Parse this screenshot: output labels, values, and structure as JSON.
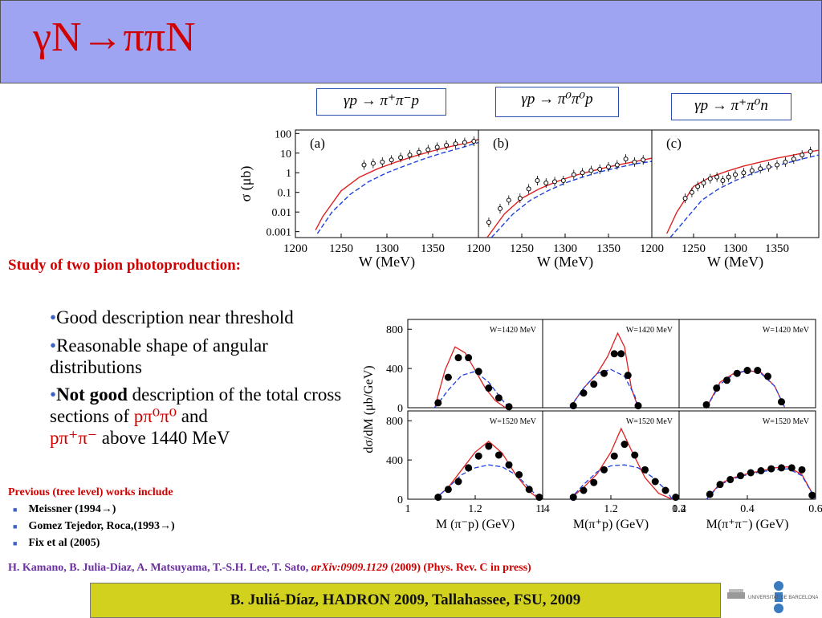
{
  "header": {
    "title": "γN→ππN"
  },
  "reactions": [
    "γp → π⁺π⁻p",
    "γp → π⁰π⁰p",
    "γp → π⁺π⁰n"
  ],
  "study_title": "Study of two pion photoproduction:",
  "bullets": {
    "b1": "Good description near threshold",
    "b2": "Reasonable shape of angular distributions",
    "b3_bold": "Not good",
    "b3_text": " description of the total cross sections of ",
    "b3_r1": "pπ⁰π⁰",
    "b3_and": " and",
    "b3_r2": "pπ⁺π⁻",
    "b3_tail": " above 1440 MeV"
  },
  "previous": {
    "title": "Previous (tree level) works include",
    "items": [
      "Meissner (1994→)",
      "Gomez Tejedor, Roca,(1993→)",
      "Fix et al (2005)"
    ]
  },
  "citation": {
    "authors": "H. Kamano, B. Julia-Diaz, A. Matsuyama, T.-S.H. Lee, T. Sato,",
    "arxiv": "arXiv:0909.1129",
    "journal": "(2009) (Phys. Rev. C in press)"
  },
  "footer": "B. Juliá-Díaz, HADRON 2009, Tallahassee, FSU, 2009",
  "logo_text": "UNIVERSITAT DE BARCELONA",
  "colors": {
    "header_bg": "#9ea3f2",
    "title_red": "#d10000",
    "footer_bg": "#d2d21e",
    "model_full": "#e02020",
    "model_tree": "#2040e0"
  },
  "chart_data": [
    {
      "type": "line",
      "panels": [
        "(a)",
        "(b)",
        "(c)"
      ],
      "xlabel": "W (MeV)",
      "ylabel": "σ (μb)",
      "log_y": true,
      "ylim": [
        0.0005,
        150
      ],
      "yticks": [
        "100",
        "10",
        "1",
        "0.1",
        "0.01",
        "0.001"
      ],
      "xticks": [
        [
          "1200",
          "1250",
          "1300",
          "1350"
        ],
        [
          "1200",
          "1250",
          "1300",
          "1350"
        ],
        [
          "1200",
          "1250",
          "1300",
          "1350"
        ]
      ],
      "xlim": [
        [
          1200,
          1400
        ],
        [
          1200,
          1400
        ],
        [
          1200,
          1400
        ]
      ],
      "series": [
        {
          "panel": 0,
          "kind": "full",
          "x": [
            1222,
            1230,
            1250,
            1270,
            1290,
            1310,
            1330,
            1350,
            1370,
            1390,
            1400
          ],
          "y": [
            0.0012,
            0.006,
            0.12,
            0.6,
            1.6,
            3.5,
            7,
            13,
            22,
            35,
            50
          ]
        },
        {
          "panel": 0,
          "kind": "tree",
          "x": [
            1224,
            1240,
            1260,
            1280,
            1300,
            1320,
            1340,
            1360,
            1380,
            1400
          ],
          "y": [
            0.0008,
            0.01,
            0.08,
            0.35,
            1,
            2.3,
            5,
            10,
            18,
            35
          ]
        },
        {
          "panel": 0,
          "kind": "data",
          "x": [
            1275,
            1285,
            1295,
            1305,
            1315,
            1325,
            1335,
            1345,
            1355,
            1365,
            1375,
            1385,
            1395
          ],
          "y": [
            2.5,
            3,
            3.5,
            4.5,
            6,
            8,
            11,
            15,
            20,
            25,
            30,
            35,
            40
          ]
        },
        {
          "panel": 1,
          "kind": "full",
          "x": [
            1210,
            1230,
            1250,
            1270,
            1290,
            1310,
            1330,
            1350,
            1370,
            1390,
            1400
          ],
          "y": [
            0.0005,
            0.008,
            0.05,
            0.15,
            0.35,
            0.7,
            1.2,
            2,
            3,
            4.5,
            5.5
          ]
        },
        {
          "panel": 1,
          "kind": "tree",
          "x": [
            1215,
            1240,
            1260,
            1280,
            1300,
            1320,
            1340,
            1360,
            1380,
            1400
          ],
          "y": [
            0.0005,
            0.008,
            0.04,
            0.12,
            0.3,
            0.6,
            1.1,
            1.8,
            2.8,
            3.8
          ]
        },
        {
          "panel": 1,
          "kind": "data",
          "x": [
            1212,
            1225,
            1235,
            1248,
            1258,
            1268,
            1278,
            1288,
            1298,
            1310,
            1320,
            1330,
            1340,
            1350,
            1360,
            1370,
            1380,
            1390
          ],
          "y": [
            0.003,
            0.015,
            0.04,
            0.05,
            0.15,
            0.4,
            0.3,
            0.35,
            0.4,
            0.8,
            1,
            1.3,
            1.5,
            2,
            2.5,
            5,
            3.5,
            4.5
          ]
        },
        {
          "panel": 2,
          "kind": "full",
          "x": [
            1218,
            1230,
            1250,
            1270,
            1290,
            1310,
            1330,
            1350,
            1370,
            1390,
            1400
          ],
          "y": [
            0.0008,
            0.01,
            0.2,
            0.6,
            1.2,
            2.2,
            3.5,
            5.5,
            8,
            12,
            14
          ]
        },
        {
          "panel": 2,
          "kind": "tree",
          "x": [
            1222,
            1240,
            1260,
            1280,
            1300,
            1320,
            1340,
            1360,
            1380,
            1400
          ],
          "y": [
            0.0005,
            0.004,
            0.04,
            0.15,
            0.4,
            0.9,
            1.8,
            3,
            5,
            8
          ]
        },
        {
          "panel": 2,
          "kind": "data",
          "x": [
            1240,
            1248,
            1255,
            1262,
            1270,
            1278,
            1285,
            1292,
            1300,
            1310,
            1320,
            1330,
            1340,
            1350,
            1360,
            1370,
            1380,
            1390
          ],
          "y": [
            0.05,
            0.1,
            0.2,
            0.3,
            0.5,
            0.6,
            0.4,
            0.6,
            0.8,
            1,
            1.3,
            1.6,
            2,
            2.5,
            3.5,
            5,
            8,
            12
          ]
        }
      ]
    },
    {
      "type": "line",
      "panels": [
        "W=1420 MeV",
        "W=1420 MeV",
        "W=1420 MeV",
        "W=1520 MeV",
        "W=1520 MeV",
        "W=1520 MeV"
      ],
      "ylabel": "dσ/dM (μb/GeV)",
      "xlabels": [
        "M (π⁻p) (GeV)",
        "M(π⁺p) (GeV)",
        "M(π⁺π⁻) (GeV)"
      ],
      "yticks": [
        "800",
        "400",
        "0"
      ],
      "ylim": [
        0,
        900
      ],
      "xticks": [
        [
          "1",
          "1.2",
          "1.4"
        ],
        [
          "1",
          "1.2",
          "1.4"
        ],
        [
          "0.2",
          "0.4",
          "0.6"
        ]
      ],
      "xlim": [
        [
          1.0,
          1.4
        ],
        [
          1.0,
          1.4
        ],
        [
          0.2,
          0.6
        ]
      ],
      "series": [
        {
          "panel": 0,
          "kind": "full",
          "x": [
            1.08,
            1.11,
            1.14,
            1.17,
            1.2,
            1.23,
            1.26,
            1.29
          ],
          "y": [
            0,
            380,
            620,
            560,
            380,
            200,
            70,
            0
          ]
        },
        {
          "panel": 0,
          "kind": "tree",
          "x": [
            1.08,
            1.12,
            1.16,
            1.2,
            1.24,
            1.28,
            1.3
          ],
          "y": [
            0,
            180,
            330,
            370,
            260,
            80,
            0
          ]
        },
        {
          "panel": 0,
          "kind": "data",
          "x": [
            1.09,
            1.12,
            1.15,
            1.18,
            1.21,
            1.24,
            1.27,
            1.3
          ],
          "y": [
            50,
            310,
            510,
            510,
            370,
            200,
            100,
            10
          ]
        },
        {
          "panel": 1,
          "kind": "full",
          "x": [
            1.08,
            1.12,
            1.16,
            1.19,
            1.22,
            1.24,
            1.26,
            1.28
          ],
          "y": [
            0,
            200,
            350,
            520,
            760,
            620,
            200,
            0
          ]
        },
        {
          "panel": 1,
          "kind": "tree",
          "x": [
            1.08,
            1.12,
            1.16,
            1.2,
            1.24,
            1.27,
            1.28
          ],
          "y": [
            0,
            200,
            350,
            390,
            320,
            120,
            0
          ]
        },
        {
          "panel": 1,
          "kind": "data",
          "x": [
            1.09,
            1.12,
            1.15,
            1.18,
            1.21,
            1.23,
            1.25,
            1.28
          ],
          "y": [
            20,
            150,
            240,
            350,
            550,
            550,
            330,
            20
          ]
        },
        {
          "panel": 2,
          "kind": "full",
          "x": [
            0.28,
            0.32,
            0.36,
            0.4,
            0.44,
            0.48,
            0.51
          ],
          "y": [
            0,
            260,
            350,
            380,
            360,
            220,
            0
          ]
        },
        {
          "panel": 2,
          "kind": "tree",
          "x": [
            0.28,
            0.32,
            0.36,
            0.4,
            0.44,
            0.48,
            0.51
          ],
          "y": [
            0,
            240,
            340,
            380,
            350,
            220,
            0
          ]
        },
        {
          "panel": 2,
          "kind": "data",
          "x": [
            0.28,
            0.31,
            0.34,
            0.37,
            0.4,
            0.43,
            0.46,
            0.5
          ],
          "y": [
            30,
            200,
            280,
            350,
            380,
            380,
            320,
            60
          ]
        },
        {
          "panel": 3,
          "kind": "full",
          "x": [
            1.08,
            1.12,
            1.16,
            1.2,
            1.24,
            1.28,
            1.32,
            1.36,
            1.39
          ],
          "y": [
            0,
            120,
            300,
            480,
            590,
            470,
            250,
            80,
            0
          ]
        },
        {
          "panel": 3,
          "kind": "tree",
          "x": [
            1.08,
            1.12,
            1.16,
            1.2,
            1.24,
            1.28,
            1.32,
            1.36,
            1.39
          ],
          "y": [
            0,
            120,
            250,
            320,
            350,
            330,
            250,
            120,
            0
          ]
        },
        {
          "panel": 3,
          "kind": "data",
          "x": [
            1.09,
            1.12,
            1.15,
            1.18,
            1.21,
            1.24,
            1.27,
            1.3,
            1.33,
            1.36,
            1.39
          ],
          "y": [
            20,
            100,
            180,
            320,
            440,
            540,
            450,
            350,
            250,
            100,
            20
          ]
        },
        {
          "panel": 4,
          "kind": "full",
          "x": [
            1.08,
            1.12,
            1.16,
            1.2,
            1.23,
            1.26,
            1.3,
            1.34,
            1.38
          ],
          "y": [
            0,
            120,
            260,
            480,
            720,
            500,
            220,
            60,
            0
          ]
        },
        {
          "panel": 4,
          "kind": "tree",
          "x": [
            1.08,
            1.12,
            1.16,
            1.2,
            1.24,
            1.28,
            1.32,
            1.36,
            1.38
          ],
          "y": [
            0,
            150,
            280,
            340,
            350,
            320,
            230,
            100,
            0
          ]
        },
        {
          "panel": 4,
          "kind": "data",
          "x": [
            1.09,
            1.12,
            1.15,
            1.18,
            1.21,
            1.24,
            1.27,
            1.3,
            1.33,
            1.36,
            1.39
          ],
          "y": [
            20,
            90,
            170,
            300,
            440,
            560,
            450,
            300,
            180,
            90,
            20
          ]
        },
        {
          "panel": 5,
          "kind": "full",
          "x": [
            0.28,
            0.32,
            0.36,
            0.4,
            0.44,
            0.48,
            0.52,
            0.56,
            0.6
          ],
          "y": [
            0,
            160,
            220,
            260,
            290,
            320,
            330,
            250,
            0
          ]
        },
        {
          "panel": 5,
          "kind": "tree",
          "x": [
            0.28,
            0.32,
            0.36,
            0.4,
            0.44,
            0.48,
            0.52,
            0.56,
            0.6
          ],
          "y": [
            0,
            150,
            210,
            250,
            280,
            300,
            310,
            240,
            0
          ]
        },
        {
          "panel": 5,
          "kind": "data",
          "x": [
            0.29,
            0.32,
            0.35,
            0.38,
            0.41,
            0.44,
            0.47,
            0.5,
            0.53,
            0.56,
            0.59
          ],
          "y": [
            50,
            150,
            200,
            240,
            270,
            290,
            310,
            320,
            320,
            300,
            40
          ]
        }
      ]
    }
  ]
}
